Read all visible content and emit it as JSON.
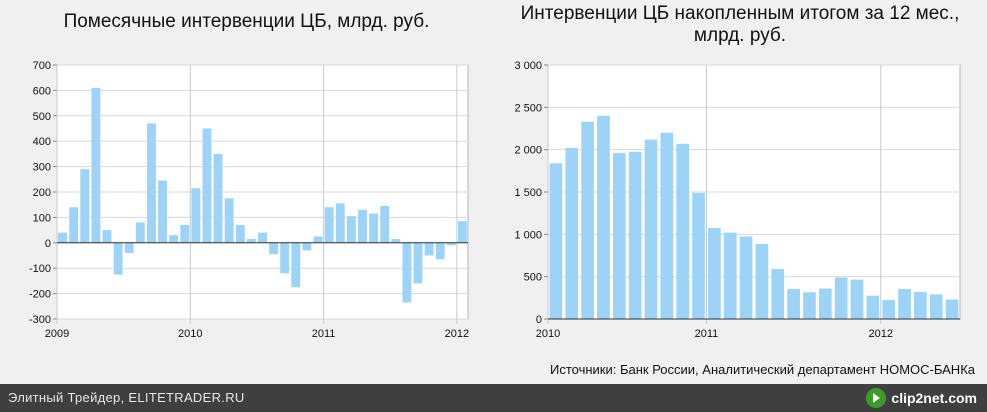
{
  "chart_data": [
    {
      "type": "bar",
      "title": "Помесячные интервенции ЦБ, млрд. руб.",
      "ylim": [
        -300,
        700
      ],
      "yticks": [
        700,
        600,
        500,
        400,
        300,
        200,
        100,
        0,
        -100,
        -200,
        -300
      ],
      "ytick_labels": [
        "700",
        "600",
        "500",
        "400",
        "300",
        "200",
        "100",
        "0",
        "-100",
        "-200",
        "-300"
      ],
      "xtick_labels": [
        "2009",
        "2010",
        "2011",
        "2012"
      ],
      "xtick_positions": [
        0,
        12,
        24,
        36
      ],
      "bar_color": "#9dd3f7",
      "values": [
        40,
        140,
        290,
        610,
        50,
        -125,
        -40,
        80,
        470,
        245,
        30,
        70,
        215,
        450,
        350,
        175,
        70,
        15,
        40,
        -45,
        -120,
        -175,
        -30,
        25,
        140,
        155,
        105,
        130,
        115,
        145,
        15,
        -235,
        -160,
        -50,
        -65,
        -10,
        85
      ]
    },
    {
      "type": "bar",
      "title": "Интервенции ЦБ накопленным итогом за 12 мес., млрд. руб.",
      "ylim": [
        0,
        3000
      ],
      "yticks": [
        3000,
        2500,
        2000,
        1500,
        1000,
        500,
        0
      ],
      "ytick_labels": [
        "3 000",
        "2 500",
        "2 000",
        "1 500",
        "1 000",
        "500",
        "0"
      ],
      "xtick_labels": [
        "2010",
        "2011",
        "2012"
      ],
      "xtick_positions": [
        0,
        10,
        21
      ],
      "bar_color": "#9dd3f7",
      "values": [
        1840,
        2020,
        2330,
        2400,
        1960,
        1975,
        2120,
        2200,
        2070,
        1490,
        1075,
        1020,
        975,
        885,
        590,
        355,
        315,
        360,
        490,
        465,
        275,
        225,
        355,
        320,
        290,
        230
      ]
    }
  ],
  "source_text": "Источники: Банк России, Аналитический департамент НОМОС-БАНКа",
  "footer": {
    "left_text": "Элитный Трейдер, ELITETRADER.RU",
    "logo_text": "clip2net.com",
    "logo_icon": "clip2net-logo-icon"
  }
}
